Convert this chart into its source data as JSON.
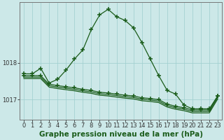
{
  "title": "Graphe pression niveau de la mer (hPa)",
  "bg_color": "#cce8e8",
  "plot_bg_color": "#cce8e8",
  "line_color": "#1a5c1a",
  "grid_color": "#9ecece",
  "line1": [
    1017.7,
    1017.7,
    1017.85,
    1017.45,
    1017.55,
    1017.8,
    1018.1,
    1018.35,
    1018.9,
    1019.3,
    1019.45,
    1019.25,
    1019.15,
    1018.95,
    1018.55,
    1018.1,
    1017.65,
    1017.25,
    1017.15,
    1016.85,
    1016.75,
    1016.75,
    1016.75,
    1017.1
  ],
  "line2": [
    1017.65,
    1017.65,
    1017.65,
    1017.42,
    1017.38,
    1017.35,
    1017.32,
    1017.28,
    1017.25,
    1017.2,
    1017.18,
    1017.15,
    1017.12,
    1017.1,
    1017.05,
    1017.03,
    1017.0,
    1016.88,
    1016.82,
    1016.78,
    1016.72,
    1016.72,
    1016.72,
    1017.1
  ],
  "line2_markers": [
    3
  ],
  "ylim": [
    1016.45,
    1019.65
  ],
  "yticks": [
    1017,
    1018
  ],
  "xticks": [
    0,
    1,
    2,
    3,
    4,
    5,
    6,
    7,
    8,
    9,
    10,
    11,
    12,
    13,
    14,
    15,
    16,
    17,
    18,
    19,
    20,
    21,
    22,
    23
  ],
  "title_fontsize": 7.5,
  "tick_fontsize": 6.0,
  "figsize": [
    3.2,
    2.0
  ],
  "dpi": 100
}
